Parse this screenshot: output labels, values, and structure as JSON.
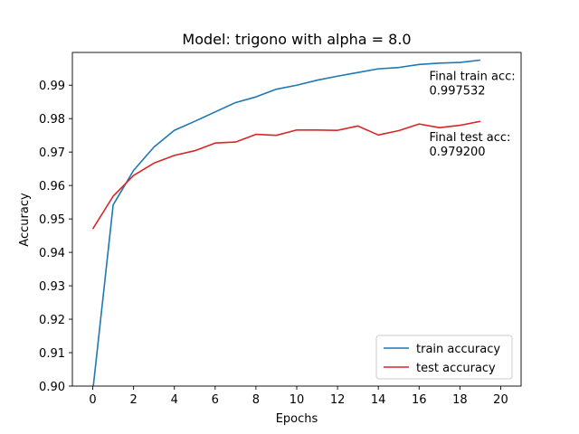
{
  "chart_data": {
    "type": "line",
    "title": "Model: trigono with alpha = 8.0",
    "xlabel": "Epochs",
    "ylabel": "Accuracy",
    "xlim": [
      -1,
      21
    ],
    "ylim": [
      0.9,
      0.9998
    ],
    "xticks": [
      0,
      2,
      4,
      6,
      8,
      10,
      12,
      14,
      16,
      18,
      20
    ],
    "yticks": [
      0.9,
      0.91,
      0.92,
      0.93,
      0.94,
      0.95,
      0.96,
      0.97,
      0.98,
      0.99
    ],
    "ytick_labels": [
      "0.90",
      "0.91",
      "0.92",
      "0.93",
      "0.94",
      "0.95",
      "0.96",
      "0.97",
      "0.98",
      "0.99"
    ],
    "x": [
      0,
      1,
      2,
      3,
      4,
      5,
      6,
      7,
      8,
      9,
      10,
      11,
      12,
      13,
      14,
      15,
      16,
      17,
      18,
      19
    ],
    "series": [
      {
        "name": "train accuracy",
        "color": "#1f77b4",
        "values": [
          0.8985,
          0.9542,
          0.9645,
          0.9715,
          0.9765,
          0.9792,
          0.982,
          0.9848,
          0.9865,
          0.9888,
          0.99,
          0.9915,
          0.9927,
          0.9938,
          0.9949,
          0.9953,
          0.9962,
          0.9966,
          0.9968,
          0.9975
        ]
      },
      {
        "name": "test accuracy",
        "color": "#d62728",
        "values": [
          0.947,
          0.9568,
          0.963,
          0.9667,
          0.969,
          0.9704,
          0.9727,
          0.973,
          0.9753,
          0.975,
          0.9766,
          0.9766,
          0.9765,
          0.9778,
          0.9751,
          0.9764,
          0.9784,
          0.9773,
          0.978,
          0.9792
        ]
      }
    ],
    "annotations": [
      {
        "line1": "Final train acc:",
        "line2": "0.997532",
        "x": 16.5,
        "y": 0.9915
      },
      {
        "line1": "Final test acc:",
        "line2": "0.979200",
        "x": 16.5,
        "y": 0.9733
      }
    ],
    "legend_position": "lower-right",
    "grid": false
  }
}
